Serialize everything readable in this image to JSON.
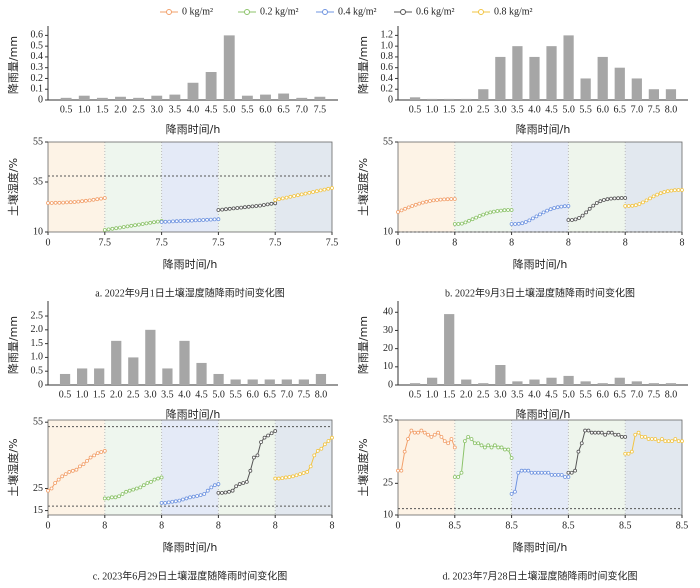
{
  "legend": [
    {
      "name": "0 kg/m²",
      "color": "#f2a06b"
    },
    {
      "name": "0.2 kg/m²",
      "color": "#8cc36a"
    },
    {
      "name": "0.4 kg/m²",
      "color": "#6f94e0"
    },
    {
      "name": "0.6 kg/m²",
      "color": "#555555"
    },
    {
      "name": "0.8 kg/m²",
      "color": "#f2c443"
    }
  ],
  "chart_data": [
    {
      "type": "bar",
      "ylabel": "降雨量/mm",
      "xlabel": "降雨时间/h",
      "color": "#a6a6a6",
      "categories": [
        "0.5",
        "1.0",
        "1.5",
        "2.0",
        "2.5",
        "3.0",
        "3.5",
        "4.0",
        "4.5",
        "5.0",
        "5.5",
        "6.0",
        "6.5",
        "7.0",
        "7.5"
      ],
      "values": [
        0.02,
        0.04,
        0.02,
        0.03,
        0.02,
        0.04,
        0.05,
        0.16,
        0.26,
        0.6,
        0.04,
        0.05,
        0.06,
        0.02,
        0.03
      ],
      "ylim": [
        0,
        0.65
      ],
      "yticks": [
        0,
        0.1,
        0.2,
        0.3,
        0.4,
        0.5,
        0.6
      ]
    },
    {
      "type": "line",
      "ylabel": "土壤湿度/%",
      "xlabel": "降雨时间/h",
      "caption": "a.  2022年9月1日土壤湿度随降雨时间变化图",
      "x": [
        0,
        0.5,
        1,
        1.5,
        2,
        2.5,
        3,
        3.5,
        4,
        4.5,
        5,
        5.5,
        6,
        6.5,
        7,
        7.5
      ],
      "xlim": [
        0,
        7.5
      ],
      "xticks": [
        0,
        7.5
      ],
      "ylim": [
        10,
        55
      ],
      "yticks": [
        10,
        35,
        55
      ],
      "reference_lines": [
        38
      ],
      "backgrounds": [
        "#fdf3e6",
        "#eef6ee",
        "#e4eaf7",
        "#eef5ec",
        "#e2e8ef"
      ],
      "series": [
        {
          "values": [
            24.5,
            24.5,
            24.6,
            24.6,
            24.7,
            24.8,
            24.9,
            25,
            25.2,
            25.4,
            25.6,
            25.8,
            26.1,
            26.4,
            26.7,
            27
          ]
        },
        {
          "values": [
            11,
            11.3,
            11.6,
            11.9,
            12.2,
            12.5,
            12.8,
            13.1,
            13.4,
            13.7,
            14,
            14.3,
            14.6,
            14.9,
            15.2,
            15.5
          ]
        },
        {
          "values": [
            15,
            15.1,
            15.2,
            15.3,
            15.4,
            15.5,
            15.6,
            15.6,
            15.7,
            15.8,
            15.9,
            16,
            16.1,
            16.2,
            16.3,
            16.4
          ]
        },
        {
          "values": [
            21,
            21.2,
            21.4,
            21.6,
            21.8,
            22,
            22.2,
            22.4,
            22.6,
            22.8,
            23,
            23.2,
            23.5,
            23.8,
            24.1,
            24.4
          ]
        },
        {
          "values": [
            26,
            26.4,
            26.8,
            27.2,
            27.6,
            28,
            28.4,
            28.8,
            29.2,
            29.6,
            30,
            30.4,
            30.8,
            31.2,
            31.6,
            32
          ]
        }
      ]
    },
    {
      "type": "bar",
      "ylabel": "降雨量/mm",
      "xlabel": "降雨时间/h",
      "color": "#a6a6a6",
      "categories": [
        "0.5",
        "1.0",
        "1.5",
        "2.0",
        "2.5",
        "3.0",
        "3.5",
        "4.0",
        "4.5",
        "5.0",
        "5.5",
        "6.0",
        "6.5",
        "7.0",
        "7.5",
        "8.0"
      ],
      "values": [
        0.05,
        0.02,
        0.02,
        0.02,
        0.2,
        0.8,
        1.0,
        0.8,
        1.0,
        1.2,
        0.4,
        0.8,
        0.6,
        0.4,
        0.2,
        0.2
      ],
      "ylim": [
        0,
        1.3
      ],
      "yticks": [
        0,
        0.2,
        0.4,
        0.6,
        0.8,
        {
          "value": 1,
          "label": "1.0"
        },
        1.2
      ]
    },
    {
      "type": "line",
      "ylabel": "土壤湿度/%",
      "xlabel": "降雨时间/h",
      "caption": "b.  2022年9月3日土壤湿度随降雨时间变化图",
      "x": [
        0,
        0.5,
        1,
        1.5,
        2,
        2.5,
        3,
        3.5,
        4,
        4.5,
        5,
        5.5,
        6,
        6.5,
        7,
        7.5,
        8
      ],
      "xlim": [
        0,
        8
      ],
      "xticks": [
        0,
        8
      ],
      "ylim": [
        10,
        55
      ],
      "yticks": [
        10,
        55
      ],
      "reference_lines": [
        10
      ],
      "backgrounds": [
        "#fdf3e6",
        "#eef6ee",
        "#e4eaf7",
        "#eef5ec",
        "#e2e8ef"
      ],
      "series": [
        {
          "values": [
            20,
            20.8,
            21.6,
            22.3,
            23,
            23.6,
            24.2,
            24.7,
            25.1,
            25.5,
            25.8,
            26,
            26.2,
            26.3,
            26.4,
            26.5,
            26.5
          ]
        },
        {
          "values": [
            14,
            14,
            14.2,
            14.8,
            15.6,
            16.4,
            17.2,
            18,
            18.7,
            19.3,
            19.8,
            20.2,
            20.5,
            20.7,
            20.9,
            21,
            21
          ]
        },
        {
          "values": [
            14,
            14,
            14.1,
            14.4,
            15,
            15.8,
            16.8,
            17.8,
            18.8,
            19.8,
            20.7,
            21.4,
            22,
            22.4,
            22.7,
            22.9,
            23
          ]
        },
        {
          "values": [
            16,
            16,
            16.3,
            17,
            18.2,
            19.8,
            21.6,
            23.2,
            24.5,
            25.4,
            26,
            26.4,
            26.7,
            26.8,
            26.9,
            27,
            27
          ]
        },
        {
          "values": [
            23,
            23,
            23.1,
            23.4,
            24,
            24.8,
            25.8,
            26.8,
            27.8,
            28.7,
            29.4,
            30,
            30.4,
            30.7,
            30.9,
            31,
            31
          ]
        }
      ]
    },
    {
      "type": "bar",
      "ylabel": "降雨量/mm",
      "xlabel": "降雨时间/h",
      "color": "#a6a6a6",
      "categories": [
        "0.5",
        "1.0",
        "1.5",
        "2.0",
        "2.5",
        "3.0",
        "3.5",
        "4.0",
        "4.5",
        "5.0",
        "5.5",
        "6.0",
        "6.5",
        "7.0",
        "7.5",
        "8.0"
      ],
      "values": [
        0.4,
        0.6,
        0.6,
        1.6,
        1.0,
        2.0,
        0.6,
        1.6,
        0.8,
        0.4,
        0.2,
        0.2,
        0.2,
        0.2,
        0.2,
        0.4
      ],
      "ylim": [
        0,
        2.9
      ],
      "yticks": [
        0,
        0.5,
        {
          "value": 1,
          "label": "1.0"
        },
        1.5,
        {
          "value": 2,
          "label": "2.0"
        },
        2.5
      ]
    },
    {
      "type": "line",
      "ylabel": "土壤湿度/%",
      "xlabel": "降雨时间/h",
      "caption": "c.  2023年6月29日土壤湿度随降雨时间变化图",
      "x": [
        0,
        0.5,
        1,
        1.5,
        2,
        2.5,
        3,
        3.5,
        4,
        4.5,
        5,
        5.5,
        6,
        6.5,
        7,
        7.5,
        8
      ],
      "xlim": [
        0,
        8
      ],
      "xticks": [
        0,
        8
      ],
      "ylim": [
        13,
        56
      ],
      "yticks": [
        15,
        25,
        55
      ],
      "reference_lines": [
        17,
        53
      ],
      "backgrounds": [
        "#fdf3e6",
        "#eef6ee",
        "#e4eaf7",
        "#eef5ec",
        "#e2e8ef"
      ],
      "series": [
        {
          "values": [
            24,
            25,
            27.5,
            29,
            30.5,
            31.5,
            32.5,
            33,
            33.5,
            35,
            36,
            37.5,
            39,
            40,
            41,
            41.5,
            42
          ]
        },
        {
          "values": [
            20.5,
            20.5,
            21,
            21,
            21.5,
            22.5,
            23.5,
            24,
            24.5,
            25,
            25.5,
            26.5,
            27.5,
            28,
            29,
            29.5,
            30
          ]
        },
        {
          "values": [
            18.5,
            18.5,
            18.7,
            19,
            19.2,
            19.5,
            20,
            20.5,
            21,
            21.3,
            21.6,
            22,
            22.5,
            24,
            25.5,
            26.5,
            27
          ]
        },
        {
          "values": [
            23,
            23,
            23.2,
            23.5,
            24,
            26,
            27,
            27.5,
            28,
            33,
            39,
            40,
            46,
            48,
            49,
            50,
            51
          ]
        },
        {
          "values": [
            29.5,
            29.5,
            29.7,
            30,
            30.2,
            30.5,
            31,
            31.5,
            32,
            32.5,
            35,
            40,
            42,
            43,
            45,
            46.5,
            48
          ]
        }
      ]
    },
    {
      "type": "bar",
      "ylabel": "降雨量/mm",
      "xlabel": "降雨时间/h",
      "color": "#a6a6a6",
      "categories": [
        "0.5",
        "1.0",
        "1.5",
        "2.0",
        "2.5",
        "3.0",
        "3.5",
        "4.0",
        "4.5",
        "5.0",
        "5.5",
        "6.0",
        "6.5",
        "7.0",
        "7.5",
        "8.0"
      ],
      "values": [
        1,
        4,
        39,
        3,
        1,
        11,
        2,
        3,
        4,
        5,
        2,
        1,
        4,
        2,
        1,
        1
      ],
      "ylim": [
        0,
        44
      ],
      "yticks": [
        0,
        10,
        20,
        30,
        40
      ]
    },
    {
      "type": "line",
      "ylabel": "土壤湿度/%",
      "xlabel": "降雨时间/h",
      "caption": "d.  2023年7月28日土壤湿度随降雨时间变化图",
      "x": [
        0,
        0.5,
        1,
        1.5,
        2,
        2.5,
        3,
        3.5,
        4,
        4.5,
        5,
        5.5,
        6,
        6.5,
        7,
        7.5,
        8,
        8.5
      ],
      "xlim": [
        0,
        8.5
      ],
      "xticks": [
        0,
        8.5
      ],
      "ylim": [
        10,
        55
      ],
      "yticks": [
        10,
        25,
        55
      ],
      "reference_lines": [
        13
      ],
      "backgrounds": [
        "#fdf3e6",
        "#eef6ee",
        "#e4eaf7",
        "#eef5ec",
        "#e2e8ef"
      ],
      "series": [
        {
          "values": [
            31,
            31,
            40,
            46,
            50,
            49,
            49,
            50,
            49,
            48,
            47,
            48,
            49,
            47,
            45,
            44,
            46,
            42
          ]
        },
        {
          "values": [
            28,
            28,
            30,
            45,
            47,
            46,
            44,
            44,
            43,
            42,
            43,
            42,
            43,
            42,
            42,
            41,
            41,
            37
          ]
        },
        {
          "values": [
            20,
            21,
            30,
            31,
            31,
            31,
            30,
            30,
            30,
            30,
            30,
            30,
            29,
            29,
            29,
            29,
            28,
            28
          ]
        },
        {
          "values": [
            30,
            30,
            31,
            40,
            44,
            50,
            50,
            49,
            49,
            49,
            49,
            48,
            49,
            49,
            48,
            48,
            47,
            47
          ]
        },
        {
          "values": [
            39,
            39,
            40,
            48,
            49,
            47,
            47,
            46,
            46,
            46,
            45,
            46,
            45,
            45,
            45,
            46,
            45,
            45
          ]
        }
      ]
    }
  ]
}
